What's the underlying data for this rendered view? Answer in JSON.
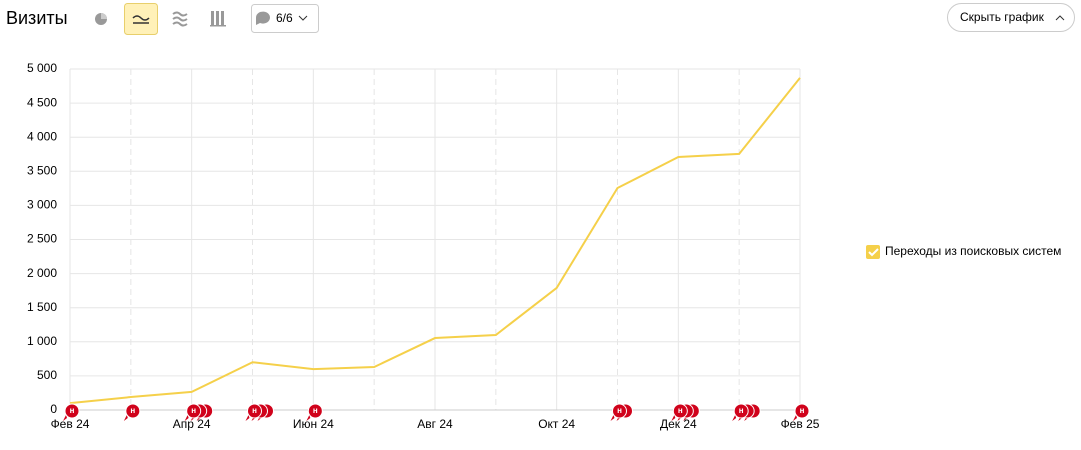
{
  "toolbar": {
    "title": "Визиты",
    "comments": "6/6",
    "hide_button": "Скрыть график"
  },
  "chart_data": {
    "type": "line",
    "categories": [
      "Фев 24",
      null,
      "Апр 24",
      null,
      "Июн 24",
      null,
      "Авг 24",
      null,
      "Окт 24",
      null,
      "Дек 24",
      null,
      "Фев 25"
    ],
    "series": [
      {
        "name": "Переходы из поисковых систем",
        "color": "#f5d04a",
        "values": [
          100,
          190,
          265,
          700,
          600,
          630,
          1055,
          1100,
          1790,
          3255,
          3710,
          3755,
          4870
        ]
      }
    ],
    "ylim": [
      0,
      5000
    ],
    "yticks": [
      0,
      500,
      {
        "value": 1000,
        "label": "1 000"
      },
      {
        "value": 1500,
        "label": "1 500"
      },
      {
        "value": 2000,
        "label": "2 000"
      },
      {
        "value": 2500,
        "label": "2 500"
      },
      {
        "value": 3000,
        "label": "3 000"
      },
      {
        "value": 3500,
        "label": "3 500"
      },
      {
        "value": 4000,
        "label": "4 000"
      },
      {
        "value": 4500,
        "label": "4 500"
      },
      {
        "value": 5000,
        "label": "5 000"
      }
    ],
    "grid": true,
    "legend": "right",
    "annotations": {
      "label": "н",
      "color": "#d0021b",
      "counts": [
        1,
        1,
        3,
        3,
        1,
        0,
        0,
        0,
        0,
        2,
        3,
        3,
        1
      ]
    }
  }
}
